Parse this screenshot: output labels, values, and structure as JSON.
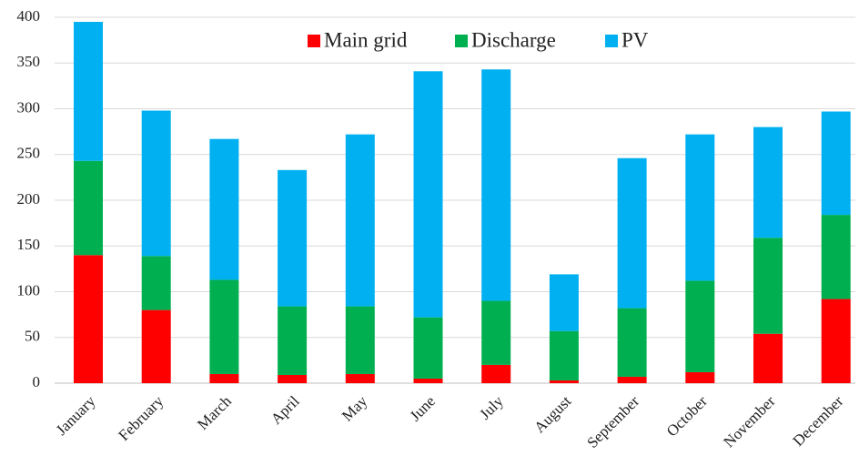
{
  "chart_data": {
    "type": "stacked_bar",
    "categories": [
      "January",
      "February",
      "March",
      "April",
      "May",
      "June",
      "July",
      "August",
      "September",
      "October",
      "November",
      "December"
    ],
    "series": [
      {
        "name": "Main grid",
        "color": "#ff0000",
        "values": [
          140,
          80,
          10,
          9,
          10,
          5,
          20,
          3,
          7,
          12,
          54,
          92
        ]
      },
      {
        "name": "Discharge",
        "color": "#00b050",
        "values": [
          103,
          59,
          103,
          75,
          74,
          67,
          70,
          54,
          75,
          100,
          105,
          92
        ]
      },
      {
        "name": "PV",
        "color": "#00b0f0",
        "values": [
          152,
          159,
          154,
          149,
          188,
          269,
          253,
          62,
          164,
          160,
          121,
          113
        ]
      }
    ],
    "ylim": [
      0,
      400
    ],
    "yticks": [
      0,
      50,
      100,
      150,
      200,
      250,
      300,
      350,
      400
    ],
    "grid": true,
    "legend": "top"
  }
}
